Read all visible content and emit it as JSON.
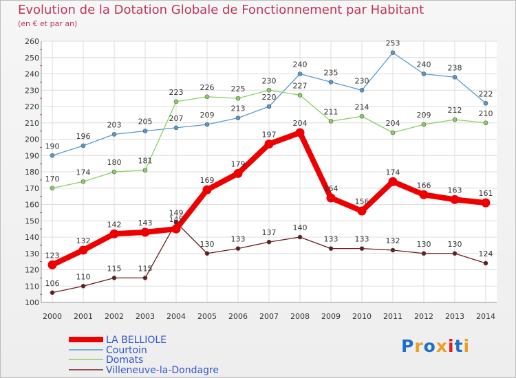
{
  "title": "Evolution de la Dotation Globale de Fonctionnement par Habitant",
  "subtitle": "(en € et par an)",
  "logo": "Proxiti",
  "chart_data": {
    "type": "line",
    "title": "Evolution de la Dotation Globale de Fonctionnement par Habitant",
    "subtitle": "(en € et par an)",
    "x": [
      2000,
      2001,
      2002,
      2003,
      2004,
      2005,
      2006,
      2007,
      2008,
      2009,
      2010,
      2011,
      2012,
      2013,
      2014
    ],
    "ylim": [
      100,
      260
    ],
    "yticks": [
      100,
      110,
      120,
      130,
      140,
      150,
      160,
      170,
      180,
      190,
      200,
      210,
      220,
      230,
      240,
      250,
      260
    ],
    "grid": true,
    "legend_position": "bottom-left",
    "series": [
      {
        "name": "LA BELLIOLE",
        "color": "#ee0000",
        "values": [
          123,
          132,
          142,
          143,
          145,
          169,
          179,
          197,
          204,
          164,
          156,
          174,
          166,
          163,
          161
        ]
      },
      {
        "name": "Courtoin",
        "color": "#5599d0",
        "values": [
          190,
          196,
          203,
          205,
          207,
          209,
          213,
          220,
          240,
          235,
          230,
          253,
          240,
          238,
          222
        ]
      },
      {
        "name": "Domats",
        "color": "#88d060",
        "values": [
          170,
          174,
          180,
          181,
          223,
          226,
          225,
          230,
          227,
          211,
          214,
          204,
          209,
          212,
          210
        ]
      },
      {
        "name": "Villeneuve-la-Dondagre",
        "color": "#6b1a1a",
        "values": [
          106,
          110,
          115,
          115,
          149,
          130,
          133,
          137,
          140,
          133,
          133,
          132,
          130,
          130,
          124
        ]
      }
    ]
  }
}
